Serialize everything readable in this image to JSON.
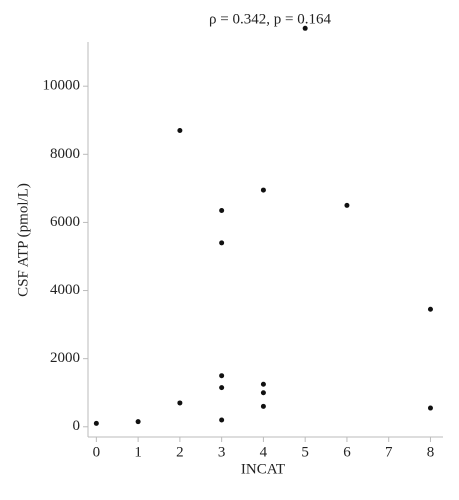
{
  "chart_data": {
    "type": "scatter",
    "title": "ρ = 0.342, p = 0.164",
    "x_label": "INCAT",
    "y_label": "CSF ATP (pmol/L)",
    "x": [
      0,
      1,
      2,
      2,
      3,
      3,
      3,
      3,
      3,
      4,
      4,
      4,
      4,
      5,
      6,
      8,
      8
    ],
    "values": [
      100,
      150,
      8700,
      700,
      6350,
      5400,
      1500,
      1150,
      200,
      6950,
      1250,
      1000,
      600,
      11700,
      6500,
      3450,
      550
    ],
    "color": "#111111",
    "xlim": [
      -0.2,
      8.3
    ],
    "xticks": [
      0,
      1,
      2,
      3,
      4,
      5,
      6,
      7,
      8
    ],
    "ylim": [
      -300,
      11650
    ],
    "yticks": [
      0,
      2000,
      4000,
      6000,
      8000,
      10000
    ]
  }
}
